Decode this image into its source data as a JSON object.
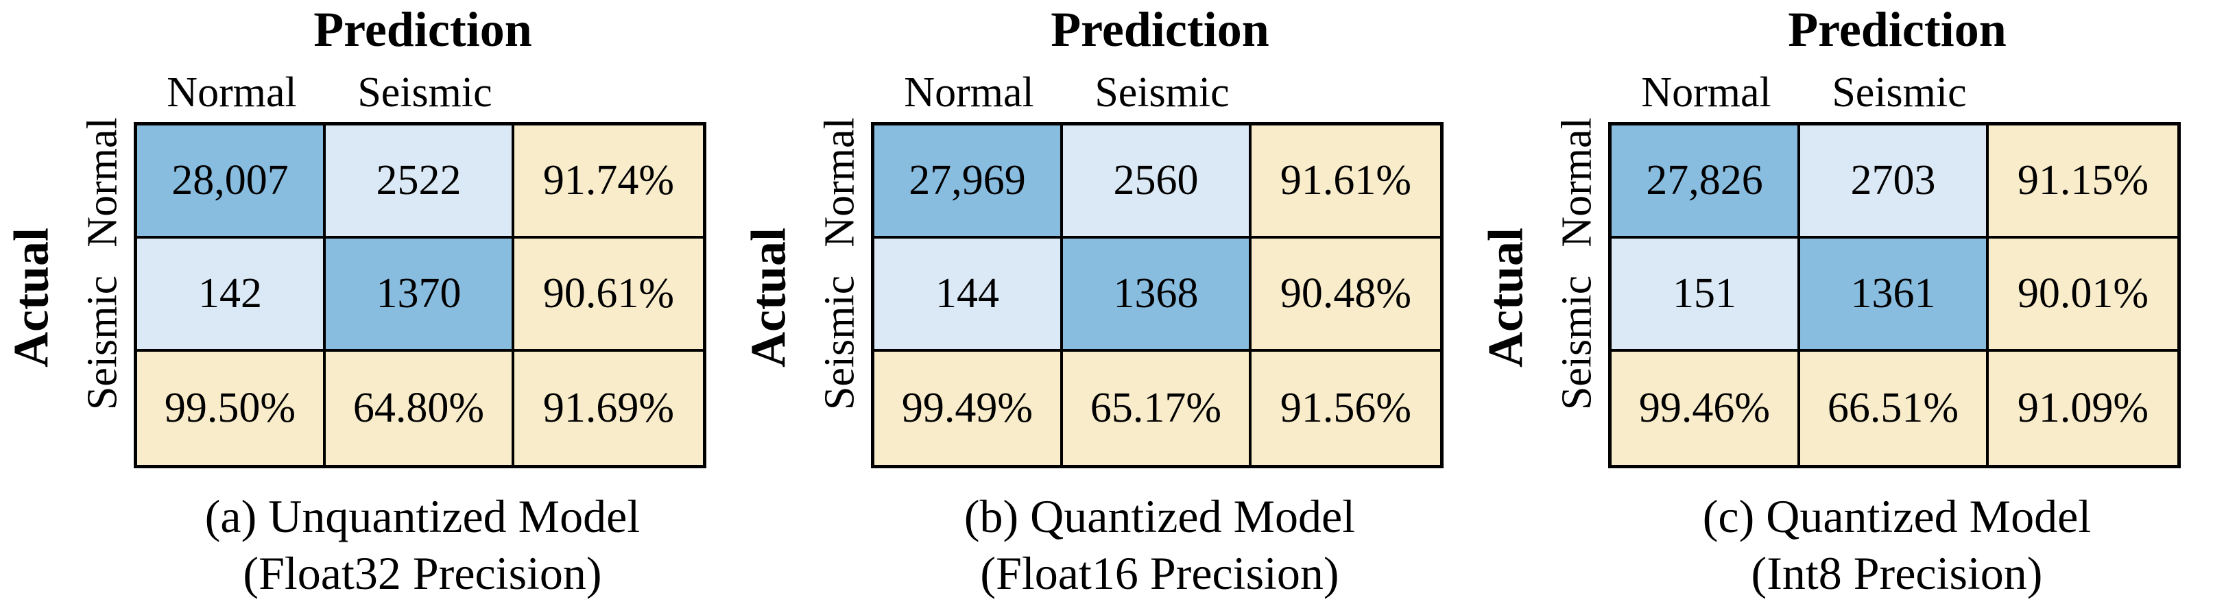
{
  "colors": {
    "diagonal_cell_blue": "#88bde0",
    "offdiagonal_cell_light_blue": "#dbe9f6",
    "summary_cell_cream": "#f9ecca",
    "border_black": "#000000",
    "background_white": "#ffffff"
  },
  "axis": {
    "prediction_label": "Prediction",
    "actual_label": "Actual",
    "col_labels": [
      "Normal",
      "Seismic"
    ],
    "row_labels": [
      "Normal",
      "Seismic"
    ]
  },
  "panels": [
    {
      "caption_line1": "(a) Unquantized Model",
      "caption_line2": "(Float32 Precision)",
      "cells": [
        [
          "28,007",
          "2522",
          "91.74%"
        ],
        [
          "142",
          "1370",
          "90.61%"
        ],
        [
          "99.50%",
          "64.80%",
          "91.69%"
        ]
      ]
    },
    {
      "caption_line1": "(b) Quantized Model",
      "caption_line2": "(Float16 Precision)",
      "cells": [
        [
          "27,969",
          "2560",
          "91.61%"
        ],
        [
          "144",
          "1368",
          "90.48%"
        ],
        [
          "99.49%",
          "65.17%",
          "91.56%"
        ]
      ]
    },
    {
      "caption_line1": "(c) Quantized Model",
      "caption_line2": "(Int8 Precision)",
      "cells": [
        [
          "27,826",
          "2703",
          "91.15%"
        ],
        [
          "151",
          "1361",
          "90.01%"
        ],
        [
          "99.46%",
          "66.51%",
          "91.09%"
        ]
      ]
    }
  ],
  "chart_data": [
    {
      "type": "heatmap",
      "title": "(a) Unquantized Model (Float32 Precision)",
      "xlabel": "Prediction",
      "ylabel": "Actual",
      "x_categories": [
        "Normal",
        "Seismic"
      ],
      "y_categories": [
        "Normal",
        "Seismic"
      ],
      "counts": [
        [
          28007,
          2522
        ],
        [
          142,
          1370
        ]
      ],
      "row_rate_pct": [
        91.74,
        90.61
      ],
      "col_rate_pct": [
        99.5,
        64.8
      ],
      "overall_pct": 91.69
    },
    {
      "type": "heatmap",
      "title": "(b) Quantized Model (Float16 Precision)",
      "xlabel": "Prediction",
      "ylabel": "Actual",
      "x_categories": [
        "Normal",
        "Seismic"
      ],
      "y_categories": [
        "Normal",
        "Seismic"
      ],
      "counts": [
        [
          27969,
          2560
        ],
        [
          144,
          1368
        ]
      ],
      "row_rate_pct": [
        91.61,
        90.48
      ],
      "col_rate_pct": [
        99.49,
        65.17
      ],
      "overall_pct": 91.56
    },
    {
      "type": "heatmap",
      "title": "(c) Quantized Model (Int8 Precision)",
      "xlabel": "Prediction",
      "ylabel": "Actual",
      "x_categories": [
        "Normal",
        "Seismic"
      ],
      "y_categories": [
        "Normal",
        "Seismic"
      ],
      "counts": [
        [
          27826,
          2703
        ],
        [
          151,
          1361
        ]
      ],
      "row_rate_pct": [
        91.15,
        90.01
      ],
      "col_rate_pct": [
        99.46,
        66.51
      ],
      "overall_pct": 91.09
    }
  ]
}
